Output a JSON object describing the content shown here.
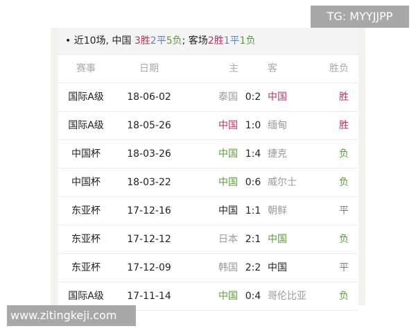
{
  "watermark_top": "TG: MYYJJPP",
  "watermark_bottom": "www.zitingkeji.com",
  "colors": {
    "win": "#b3365a",
    "loss": "#5a9a3c",
    "draw": "#6b80a8",
    "neutral": "#999999"
  },
  "summary": {
    "prefix": "• 近10场, 中国 ",
    "w": "3胜",
    "d": "2平",
    "l": "5负",
    "away_prefix": "; 客场",
    "aw": "2胜",
    "ad": "1平",
    "al": "1负"
  },
  "headers": {
    "competition": "赛事",
    "date": "日期",
    "home": "主",
    "away": "客",
    "result": "胜负"
  },
  "matches": [
    {
      "competition": "国际A级",
      "date": "18-06-02",
      "home": "泰国",
      "score": "0:2",
      "away": "中国",
      "result": "胜",
      "home_style": "neutral",
      "away_style": "win",
      "result_style": "win"
    },
    {
      "competition": "国际A级",
      "date": "18-05-26",
      "home": "中国",
      "score": "1:0",
      "away": "缅甸",
      "result": "胜",
      "home_style": "win",
      "away_style": "neutral",
      "result_style": "win"
    },
    {
      "competition": "中国杯",
      "date": "18-03-26",
      "home": "中国",
      "score": "1:4",
      "away": "捷克",
      "result": "负",
      "home_style": "loss",
      "away_style": "neutral",
      "result_style": "loss"
    },
    {
      "competition": "中国杯",
      "date": "18-03-22",
      "home": "中国",
      "score": "0:6",
      "away": "威尔士",
      "result": "负",
      "home_style": "loss",
      "away_style": "neutral",
      "result_style": "loss"
    },
    {
      "competition": "东亚杯",
      "date": "17-12-16",
      "home": "中国",
      "score": "1:1",
      "away": "朝鲜",
      "result": "平",
      "home_style": "black",
      "away_style": "neutral",
      "result_style": "draw"
    },
    {
      "competition": "东亚杯",
      "date": "17-12-12",
      "home": "日本",
      "score": "2:1",
      "away": "中国",
      "result": "负",
      "home_style": "neutral",
      "away_style": "loss",
      "result_style": "loss"
    },
    {
      "competition": "东亚杯",
      "date": "17-12-09",
      "home": "韩国",
      "score": "2:2",
      "away": "中国",
      "result": "平",
      "home_style": "neutral",
      "away_style": "black",
      "result_style": "draw"
    },
    {
      "competition": "国际A级",
      "date": "17-11-14",
      "home": "中国",
      "score": "0:4",
      "away": "哥伦比亚",
      "result": "负",
      "home_style": "loss",
      "away_style": "neutral",
      "result_style": "loss"
    }
  ]
}
